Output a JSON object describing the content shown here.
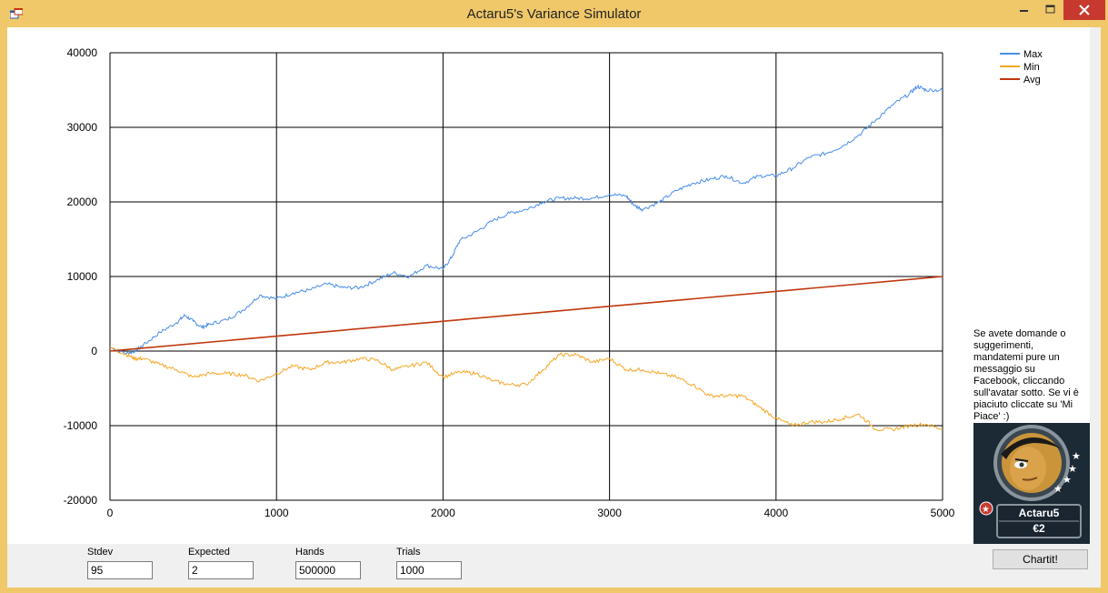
{
  "window": {
    "title": "Actaru5's Variance Simulator"
  },
  "colors": {
    "frame": "#f0c86a",
    "close": "#c7392f",
    "max_series": "#4a8ee8",
    "min_series": "#f5a623",
    "avg_series": "#c0360c"
  },
  "icons": [
    "app-icon",
    "minimize-icon",
    "maximize-icon",
    "close-icon"
  ],
  "chart_data": {
    "type": "line",
    "xlim": [
      0,
      5000
    ],
    "ylim": [
      -20000,
      40000
    ],
    "xticks": [
      "0",
      "1000",
      "2000",
      "3000",
      "4000",
      "5000"
    ],
    "yticks": [
      "40000",
      "30000",
      "20000",
      "10000",
      "0",
      "-10000",
      "-20000"
    ],
    "grid": true,
    "legend_position": "top-right",
    "series": [
      {
        "name": "Max",
        "x": [
          0,
          100,
          150,
          200,
          300,
          400,
          450,
          500,
          550,
          600,
          700,
          800,
          900,
          1000,
          1100,
          1200,
          1300,
          1400,
          1500,
          1600,
          1700,
          1800,
          1900,
          2000,
          2050,
          2100,
          2200,
          2300,
          2400,
          2500,
          2600,
          2700,
          2800,
          2900,
          3000,
          3100,
          3150,
          3200,
          3300,
          3400,
          3500,
          3600,
          3700,
          3800,
          3900,
          4000,
          4100,
          4200,
          4300,
          4400,
          4500,
          4600,
          4700,
          4800,
          4850,
          4900,
          5000
        ],
        "values": [
          500,
          -300,
          0,
          800,
          2500,
          3800,
          4800,
          4000,
          3200,
          3600,
          4200,
          5500,
          7500,
          7000,
          7800,
          8200,
          9000,
          8500,
          8500,
          9500,
          10500,
          10000,
          11500,
          11000,
          12500,
          14800,
          16000,
          17500,
          18500,
          19000,
          20000,
          20500,
          20500,
          20500,
          21000,
          20800,
          19500,
          19000,
          20000,
          21500,
          22500,
          23000,
          23500,
          22500,
          23500,
          23500,
          24500,
          26000,
          26500,
          27500,
          29000,
          31000,
          33000,
          34500,
          35500,
          35000,
          35000
        ]
      },
      {
        "name": "Min",
        "x": [
          0,
          100,
          150,
          200,
          300,
          400,
          500,
          600,
          700,
          800,
          900,
          1000,
          1100,
          1200,
          1300,
          1400,
          1500,
          1600,
          1700,
          1800,
          1900,
          2000,
          2100,
          2200,
          2300,
          2400,
          2500,
          2600,
          2700,
          2800,
          2900,
          3000,
          3100,
          3200,
          3300,
          3400,
          3500,
          3600,
          3700,
          3800,
          3900,
          4000,
          4100,
          4200,
          4300,
          4400,
          4500,
          4600,
          4700,
          4800,
          4900,
          5000
        ],
        "values": [
          500,
          -500,
          -1000,
          -1000,
          -1800,
          -2500,
          -3500,
          -3000,
          -3000,
          -3200,
          -4000,
          -3000,
          -2000,
          -2500,
          -1500,
          -1500,
          -1000,
          -1200,
          -2500,
          -2000,
          -1500,
          -3500,
          -2800,
          -3000,
          -4000,
          -4500,
          -4500,
          -2500,
          -500,
          -500,
          -1500,
          -1000,
          -2500,
          -2500,
          -3000,
          -3500,
          -4500,
          -6000,
          -6000,
          -6000,
          -7500,
          -9000,
          -10000,
          -9500,
          -9500,
          -9000,
          -8500,
          -10500,
          -10500,
          -10000,
          -9800,
          -10500
        ]
      },
      {
        "name": "Avg",
        "x": [
          0,
          5000
        ],
        "values": [
          0,
          10000
        ]
      }
    ]
  },
  "side_message": "Se avete domande o suggerimenti, mandatemi pure un messaggio su Facebook, cliccando sull'avatar sotto. Se vi è piaciuto cliccate su 'Mi Piace' :)",
  "avatar": {
    "name": "Actaru5",
    "amount": "€2"
  },
  "fields": [
    {
      "label": "Stdev",
      "value": "95"
    },
    {
      "label": "Expected",
      "value": "2"
    },
    {
      "label": "Hands",
      "value": "500000"
    },
    {
      "label": "Trials",
      "value": "1000"
    }
  ],
  "chart_button": "Chartit!"
}
